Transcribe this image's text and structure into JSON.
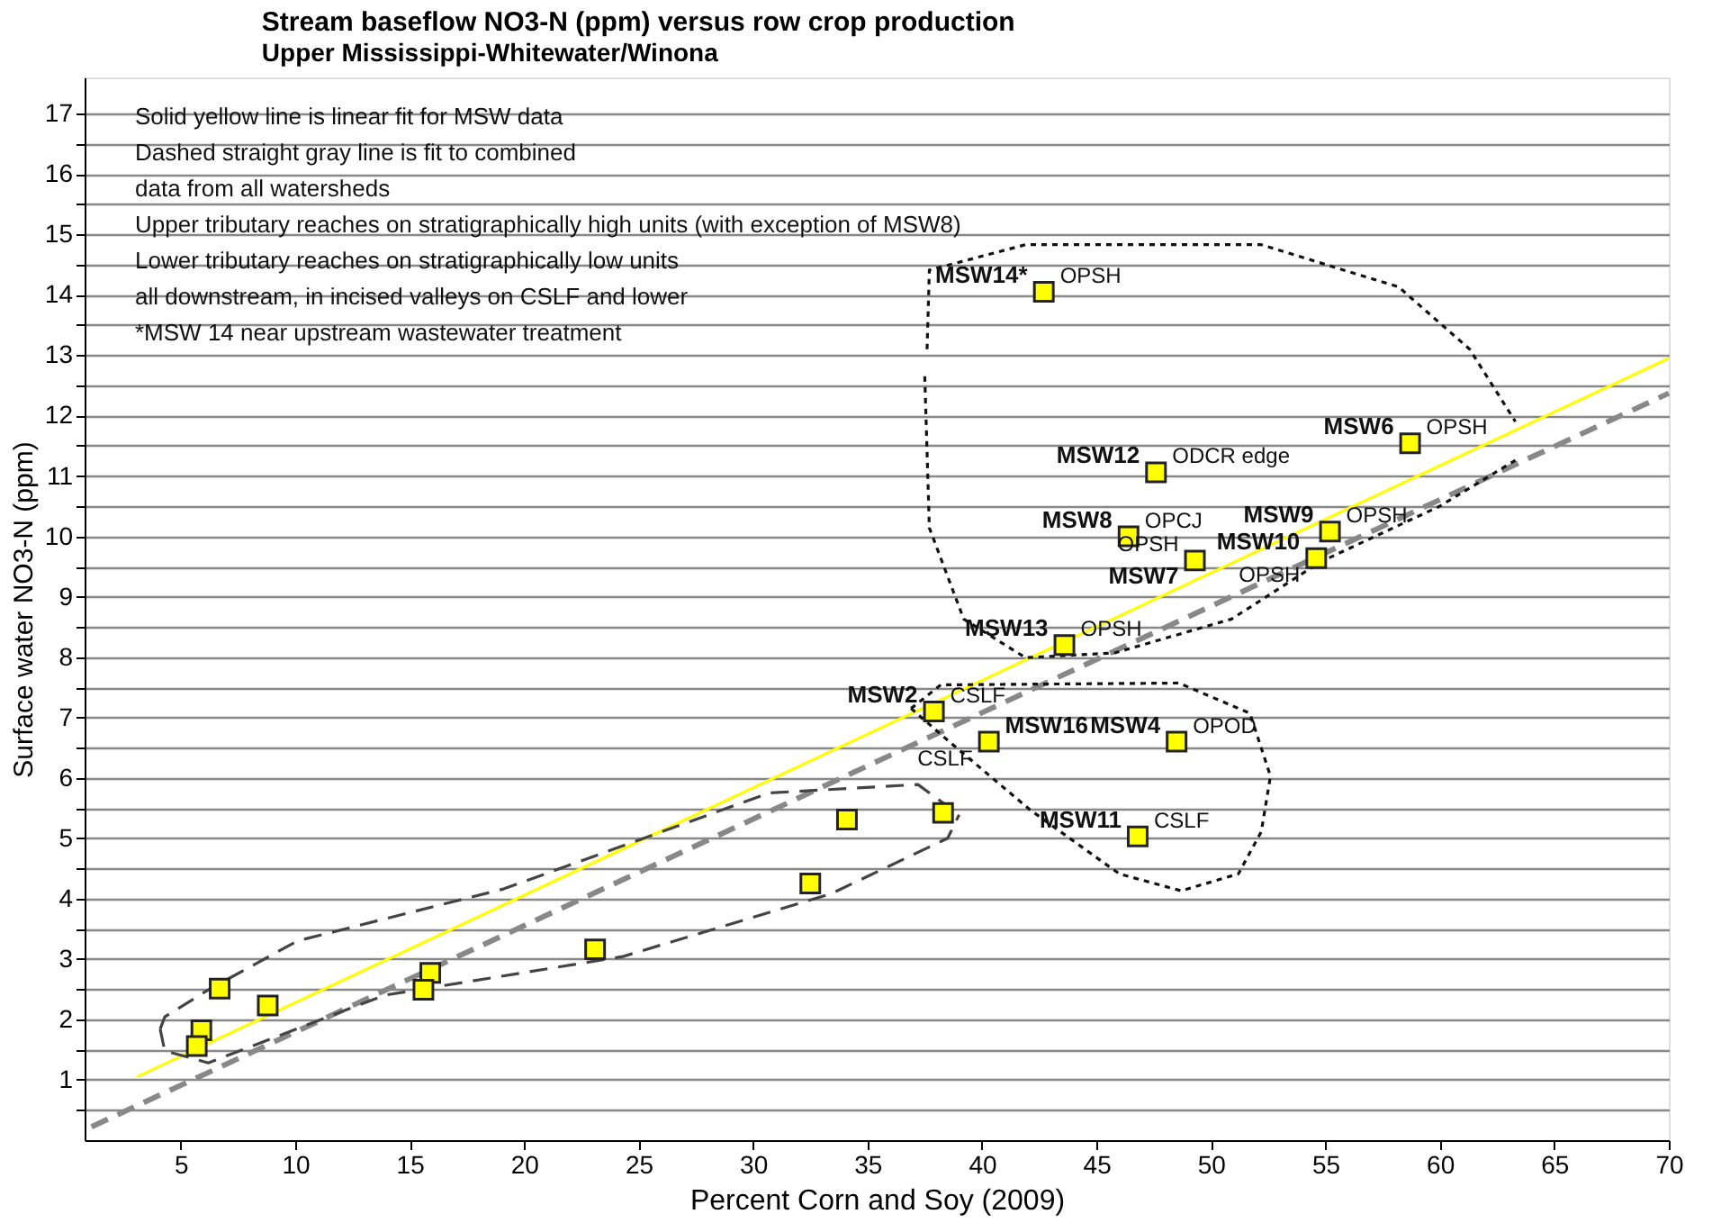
{
  "chart_data": {
    "type": "scatter",
    "title": "Stream baseflow NO3-N (ppm) versus row crop production",
    "subtitle": "Upper Mississippi-Whitewater/Winona",
    "xlabel": "Percent Corn and Soy (2009)",
    "ylabel": "Surface water NO3-N (ppm)",
    "xlim": [
      0.8,
      70
    ],
    "ylim": [
      0,
      17.6
    ],
    "xticks": [
      5,
      10,
      15,
      20,
      25,
      30,
      35,
      40,
      45,
      50,
      55,
      60,
      65,
      70
    ],
    "yticks": [
      {
        "value": 0.5,
        "label": null
      },
      1,
      {
        "value": 1.5,
        "label": null
      },
      2,
      {
        "value": 2.5,
        "label": null
      },
      3,
      {
        "value": 3.5,
        "label": null
      },
      4,
      {
        "value": 4.5,
        "label": null
      },
      5,
      {
        "value": 5.5,
        "label": null
      },
      6,
      {
        "value": 6.5,
        "label": null
      },
      7,
      {
        "value": 7.5,
        "label": null
      },
      8,
      {
        "value": 8.5,
        "label": null
      },
      9,
      {
        "value": 9.5,
        "label": null
      },
      10,
      {
        "value": 10.5,
        "label": null
      },
      11,
      {
        "value": 11.5,
        "label": null
      },
      12,
      {
        "value": 12.5,
        "label": null
      },
      13,
      {
        "value": 13.5,
        "label": null
      },
      14,
      {
        "value": 14.5,
        "label": null
      },
      15,
      {
        "value": 15.5,
        "label": null
      },
      16,
      {
        "value": 16.5,
        "label": null
      },
      17
    ],
    "grid": "y",
    "series": [
      {
        "marker": "square",
        "color": "#ffff00",
        "x": [
          42.7,
          58.7,
          47.6,
          46.4,
          55.2,
          54.6,
          49.3,
          43.6,
          37.9,
          40.3,
          48.5,
          46.8,
          38.3,
          34.1,
          32.5,
          23.1,
          15.9,
          15.6,
          8.8,
          6.7,
          5.9,
          5.7
        ],
        "values": [
          14.05,
          11.54,
          11.06,
          10.0,
          10.08,
          9.64,
          9.6,
          8.2,
          7.1,
          6.6,
          6.6,
          5.03,
          5.42,
          5.31,
          4.25,
          3.16,
          2.77,
          2.49,
          2.23,
          2.51,
          1.82,
          1.56
        ]
      },
      {
        "type": "line",
        "line_style": "solid",
        "color": "#ffff00",
        "x": [
          3.1,
          70
        ],
        "values": [
          1.05,
          12.95
        ]
      },
      {
        "type": "line",
        "line_style": "dashed",
        "color": "#888888",
        "x": [
          1.1,
          70
        ],
        "values": [
          0.22,
          12.37
        ]
      },
      {
        "type": "line",
        "line_style": "dotted",
        "color": "#111111",
        "x": [
          37.6,
          37.7,
          41.9,
          52.2,
          58.2,
          61.3,
          63.3
        ],
        "values": [
          13.1,
          14.41,
          14.83,
          14.83,
          14.13,
          13.1,
          11.9
        ]
      },
      {
        "type": "line",
        "line_style": "dotted",
        "color": "#111111",
        "x": [
          37.5,
          37.7,
          39.2,
          41.9,
          45.8,
          50.9,
          54.8,
          60.0,
          63.3
        ],
        "values": [
          12.65,
          10.14,
          8.63,
          7.99,
          8.07,
          8.63,
          9.58,
          10.5,
          11.26
        ]
      },
      {
        "type": "line",
        "line_style": "dotted",
        "color": "#111111",
        "x": [
          36.9,
          38.2,
          48.6,
          51.7,
          52.6
        ],
        "values": [
          7.15,
          7.54,
          7.57,
          7.07,
          6.03
        ]
      },
      {
        "type": "line",
        "line_style": "dotted",
        "color": "#111111",
        "x": [
          36.9,
          38.6,
          42.1,
          46.0,
          48.7,
          51.2,
          52.2,
          52.6
        ],
        "values": [
          7.15,
          6.59,
          5.47,
          4.41,
          4.13,
          4.41,
          5.11,
          6.03
        ]
      },
      {
        "type": "line",
        "line_style": "dashed",
        "color": "#444444",
        "x": [
          4.1,
          4.3,
          6.2,
          10.1,
          19.1,
          30.7,
          37.2,
          39.0
        ],
        "values": [
          1.84,
          2.04,
          2.49,
          3.3,
          4.16,
          5.75,
          5.89,
          5.39
        ]
      },
      {
        "type": "line",
        "line_style": "dashed",
        "color": "#444444",
        "x": [
          4.1,
          4.3,
          6.2,
          13.9,
          24.3,
          33.4,
          38.5,
          39.0
        ],
        "values": [
          1.84,
          1.48,
          1.28,
          2.4,
          3.04,
          4.08,
          5.0,
          5.39
        ]
      }
    ],
    "annotations": [
      {
        "text": "MSW14*",
        "x": 42.7,
        "y": 14.05
      },
      {
        "text": "OPSH",
        "x": 42.7,
        "y": 14.05
      },
      {
        "text": "MSW12",
        "x": 47.6,
        "y": 11.06
      },
      {
        "text": "ODCR edge",
        "x": 47.6,
        "y": 11.06
      },
      {
        "text": "MSW8",
        "x": 46.4,
        "y": 10.0
      },
      {
        "text": "OPCJ",
        "x": 46.4,
        "y": 10.0
      },
      {
        "text": "MSW6",
        "x": 58.7,
        "y": 11.54
      },
      {
        "text": "OPSH",
        "x": 58.7,
        "y": 11.54
      },
      {
        "text": "MSW9",
        "x": 55.2,
        "y": 10.08
      },
      {
        "text": "OPSH",
        "x": 55.2,
        "y": 10.08
      },
      {
        "text": "MSW10",
        "x": 54.6,
        "y": 9.64
      },
      {
        "text": "OPSH",
        "x": 54.6,
        "y": 9.64
      },
      {
        "text": "MSW7",
        "x": 49.3,
        "y": 9.6
      },
      {
        "text": "OPSH",
        "x": 49.3,
        "y": 9.6
      },
      {
        "text": "MSW13",
        "x": 43.6,
        "y": 8.2
      },
      {
        "text": "OPSH",
        "x": 43.6,
        "y": 8.2
      },
      {
        "text": "MSW2",
        "x": 37.9,
        "y": 7.1
      },
      {
        "text": "CSLF",
        "x": 37.9,
        "y": 7.1
      },
      {
        "text": "MSW16",
        "x": 40.3,
        "y": 6.6
      },
      {
        "text": "CSLF",
        "x": 40.3,
        "y": 6.6
      },
      {
        "text": "MSW4",
        "x": 48.5,
        "y": 6.6
      },
      {
        "text": "OPOD",
        "x": 48.5,
        "y": 6.6
      },
      {
        "text": "MSW11",
        "x": 46.8,
        "y": 5.03
      },
      {
        "text": "CSLF",
        "x": 46.8,
        "y": 5.03
      },
      "Solid yellow line is linear fit for MSW data",
      "Dashed straight gray line is fit to combined",
      "data from all watersheds",
      "Upper tributary reaches on stratigraphically high units (with exception of MSW8)",
      "Lower tributary reaches on stratigraphically low units",
      "all downstream, in incised valleys on CSLF and lower",
      "*MSW 14 near upstream wastewater treatment"
    ]
  }
}
